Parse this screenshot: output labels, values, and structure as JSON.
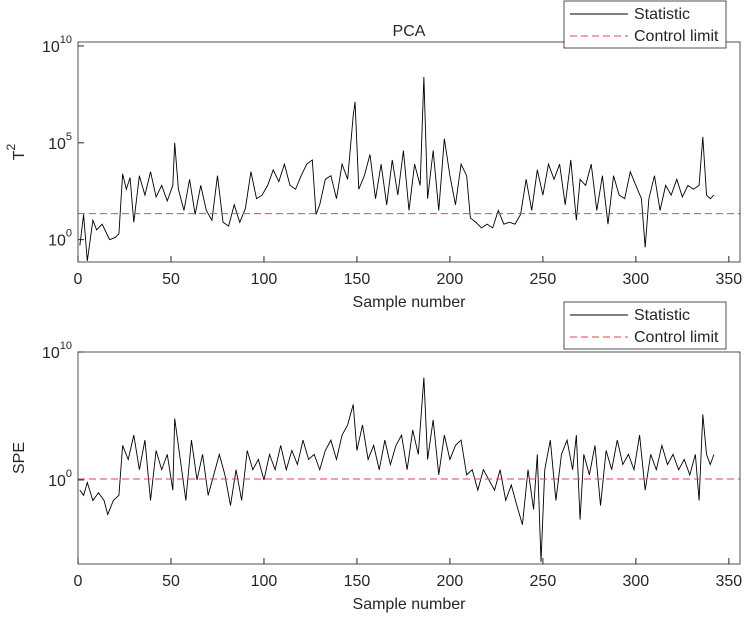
{
  "chart_data": [
    {
      "type": "line",
      "title": "PCA",
      "xlabel": "Sample number",
      "ylabel": "T",
      "ylabel_sup": "2",
      "yscale": "log",
      "legend": "northeast",
      "xlim": [
        0,
        356
      ],
      "xticks": [
        0,
        50,
        100,
        150,
        200,
        250,
        300,
        350
      ],
      "ylim": [
        0.07,
        16000000000
      ],
      "yticks": [
        {
          "value": 1,
          "label": "10",
          "exponent": "0"
        },
        {
          "value": 100000,
          "label": "10",
          "exponent": "5"
        },
        {
          "value": 10000000000,
          "label": "10",
          "exponent": "10"
        }
      ],
      "series": [
        {
          "name": "Statistic",
          "color": "#000000",
          "x": [
            1,
            3,
            5,
            8,
            10,
            13,
            17,
            20,
            22,
            24,
            26,
            28,
            30,
            33,
            36,
            39,
            42,
            45,
            48,
            51,
            52,
            54,
            57,
            60,
            63,
            66,
            69,
            72,
            75,
            78,
            81,
            84,
            87,
            90,
            93,
            96,
            99,
            102,
            105,
            108,
            111,
            114,
            117,
            120,
            123,
            126,
            128,
            130,
            133,
            136,
            139,
            142,
            145,
            148,
            149,
            151,
            154,
            157,
            160,
            163,
            166,
            169,
            172,
            175,
            178,
            181,
            184,
            186,
            188,
            191,
            194,
            197,
            200,
            203,
            206,
            209,
            211,
            214,
            217,
            220,
            223,
            226,
            229,
            232,
            235,
            238,
            241,
            244,
            247,
            250,
            253,
            256,
            259,
            262,
            265,
            268,
            270,
            273,
            276,
            279,
            282,
            285,
            288,
            291,
            294,
            297,
            300,
            303,
            305,
            307,
            310,
            313,
            316,
            319,
            322,
            325,
            328,
            331,
            334,
            336,
            338,
            340,
            342
          ],
          "values": [
            0.5,
            20,
            0.079,
            10,
            3.2,
            6.3,
            1,
            1.3,
            2,
            2500.0,
            400,
            1600.0,
            7.9,
            2000.0,
            200,
            3200.0,
            160,
            630,
            100,
            630,
            100000.0,
            400,
            32,
            1300.0,
            20,
            630,
            32,
            10,
            2000.0,
            7.9,
            5,
            63,
            7.9,
            40,
            3200.0,
            130,
            200,
            630,
            4000.0,
            1000.0,
            7900.0,
            630,
            400,
            2000.0,
            7900.0,
            13000.0,
            20,
            63,
            1300.0,
            2000.0,
            130,
            7900.0,
            1300.0,
            2500000.0,
            13000000.0,
            400,
            2000.0,
            25000.0,
            130,
            7900.0,
            63,
            13000.0,
            200,
            40000.0,
            32,
            7900.0,
            630,
            250000000.0,
            130,
            40000.0,
            32,
            160000.0,
            2000.0,
            63,
            7900.0,
            2000.0,
            13,
            7.9,
            4,
            6.3,
            4,
            32,
            6.3,
            7.9,
            6.3,
            20,
            1300.0,
            32,
            4000.0,
            200,
            7900.0,
            1300.0,
            7900.0,
            63,
            13000.0,
            10,
            1300.0,
            630,
            7900.0,
            32,
            2000.0,
            6.3,
            2000.0,
            200,
            130,
            3200.0,
            630,
            130,
            0.4,
            130,
            2000.0,
            32,
            630,
            200,
            1300.0,
            160,
            630,
            400,
            630,
            200000.0,
            200,
            130,
            200
          ]
        },
        {
          "name": "Control limit",
          "color": "#e0474c",
          "dashed": true,
          "value": 22
        }
      ]
    },
    {
      "type": "line",
      "xlabel": "Sample number",
      "ylabel": "SPE",
      "yscale": "log",
      "legend": "northeast",
      "xlim": [
        0,
        356
      ],
      "xticks": [
        0,
        50,
        100,
        150,
        200,
        250,
        300,
        350
      ],
      "ylim": [
        2.7e-07,
        10000000000
      ],
      "yticks": [
        {
          "value": 1,
          "label": "10",
          "exponent": "0"
        },
        {
          "value": 10000000000,
          "label": "10",
          "exponent": "10"
        }
      ],
      "series": [
        {
          "name": "Statistic",
          "color": "#000000",
          "x": [
            1,
            3,
            5,
            8,
            11,
            14,
            16,
            19,
            22,
            24,
            27,
            30,
            33,
            36,
            39,
            42,
            45,
            48,
            51,
            52,
            55,
            58,
            61,
            64,
            67,
            70,
            73,
            76,
            79,
            82,
            85,
            88,
            91,
            94,
            97,
            100,
            103,
            106,
            109,
            112,
            115,
            118,
            121,
            124,
            127,
            130,
            133,
            136,
            139,
            142,
            145,
            148,
            150,
            153,
            156,
            159,
            162,
            165,
            168,
            171,
            174,
            177,
            180,
            183,
            186,
            188,
            191,
            194,
            197,
            200,
            203,
            206,
            209,
            212,
            215,
            218,
            221,
            224,
            227,
            230,
            233,
            236,
            239,
            242,
            245,
            247,
            249,
            251,
            254,
            257,
            260,
            263,
            266,
            268,
            270,
            272,
            275,
            278,
            281,
            284,
            287,
            290,
            293,
            296,
            299,
            302,
            305,
            308,
            311,
            314,
            317,
            320,
            323,
            326,
            329,
            332,
            334,
            336,
            338,
            340,
            342
          ],
          "values": [
            0.16,
            0.063,
            0.63,
            0.025,
            0.1,
            0.025,
            0.002,
            0.025,
            0.063,
            500,
            40,
            3200.0,
            6.3,
            1300.0,
            0.025,
            200,
            6.3,
            100,
            0.16,
            63000.0,
            40,
            0.025,
            1300.0,
            1,
            100,
            0.063,
            2.5,
            100,
            2.5,
            0.01,
            6.3,
            0.025,
            200,
            6.3,
            40,
            1,
            100,
            6.3,
            500,
            6.3,
            200,
            16,
            1300.0,
            40,
            100,
            6.3,
            200,
            1300.0,
            40,
            3200.0,
            20000.0,
            790000.0,
            200,
            20000.0,
            40,
            500,
            6.3,
            1300.0,
            16,
            500,
            3200.0,
            6.3,
            7900.0,
            100,
            100000000.0,
            40,
            50000.0,
            2.5,
            3200.0,
            40,
            500,
            1300.0,
            2.5,
            6.3,
            0.16,
            6.3,
            1,
            0.16,
            6.3,
            0.025,
            0.4,
            0.01,
            0.00032,
            6.3,
            0.005,
            100,
            4e-07,
            6.3,
            1300.0,
            0.025,
            100,
            1300.0,
            6.3,
            3200.0,
            0.00079,
            100,
            2.5,
            500,
            0.01,
            200,
            6.3,
            1300.0,
            16,
            100,
            6.3,
            3200.0,
            0.16,
            100,
            6.3,
            500,
            16,
            100,
            6.3,
            40,
            2.5,
            100,
            0.025,
            130000.0,
            100,
            16,
            100
          ]
        },
        {
          "name": "Control limit",
          "color": "#e0474c",
          "dashed": true,
          "value": 1.2
        }
      ]
    }
  ]
}
